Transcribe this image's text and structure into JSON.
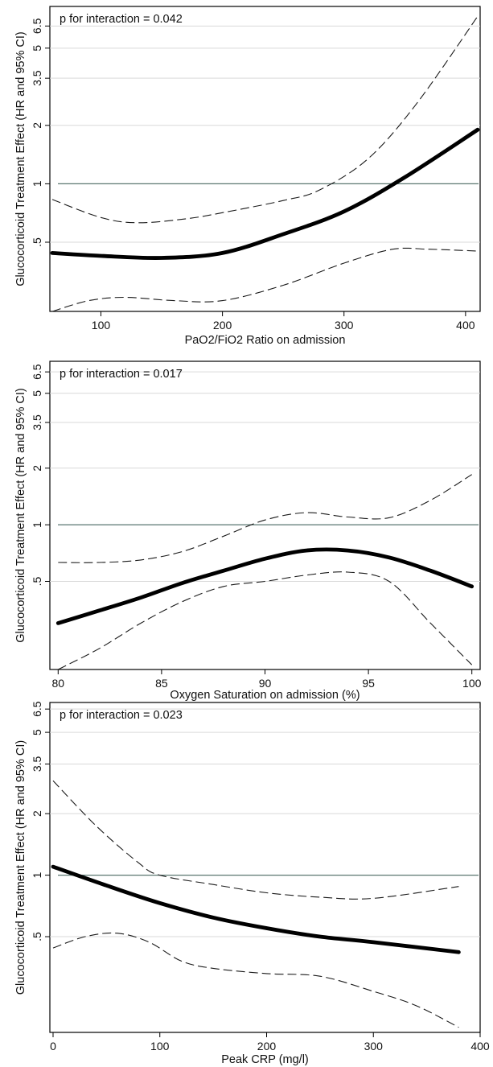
{
  "chart_data": [
    {
      "type": "line",
      "annotation": "p for interaction = 0.042",
      "xlabel": "PaO2/FiO2 Ratio on admission",
      "ylabel": "Glucocorticoid Treatment Effect (HR and 95% CI)",
      "x_ticks": [
        100,
        200,
        300,
        400
      ],
      "y_ticks": [
        0.5,
        1,
        2,
        3.5,
        5,
        6.5
      ],
      "y_tick_labels": [
        ".5",
        "1",
        "2",
        "3.5",
        "5",
        "6.5"
      ],
      "y_scale": "log",
      "xlim": [
        58,
        412
      ],
      "ylim": [
        0.22,
        8.2
      ],
      "reference_line": 1,
      "grid": true,
      "series": [
        {
          "role": "estimate",
          "x": [
            60,
            100,
            150,
            200,
            250,
            300,
            350,
            410
          ],
          "values": [
            0.44,
            0.425,
            0.415,
            0.44,
            0.55,
            0.72,
            1.08,
            1.9
          ]
        },
        {
          "role": "upper",
          "x": [
            60,
            100,
            130,
            170,
            200,
            250,
            280,
            320,
            360,
            410
          ],
          "values": [
            0.83,
            0.67,
            0.63,
            0.66,
            0.71,
            0.82,
            0.93,
            1.35,
            2.6,
            7.3
          ]
        },
        {
          "role": "lower",
          "x": [
            60,
            90,
            120,
            160,
            200,
            250,
            300,
            340,
            370,
            410
          ],
          "values": [
            0.22,
            0.25,
            0.26,
            0.25,
            0.25,
            0.3,
            0.39,
            0.46,
            0.46,
            0.45
          ]
        }
      ]
    },
    {
      "type": "line",
      "annotation": "p for interaction = 0.017",
      "xlabel": "Oxygen Saturation on admission (%)",
      "ylabel": "Glucocorticoid Treatment Effect (HR and 95% CI)",
      "x_ticks": [
        80,
        85,
        90,
        95,
        100
      ],
      "y_ticks": [
        0.5,
        1,
        2,
        3.5,
        5,
        6.5
      ],
      "y_tick_labels": [
        ".5",
        "1",
        "2",
        "3.5",
        "5",
        "6.5"
      ],
      "y_scale": "log",
      "xlim": [
        79.6,
        100.4
      ],
      "ylim": [
        0.17,
        7.4
      ],
      "reference_line": 1,
      "grid": true,
      "series": [
        {
          "role": "estimate",
          "x": [
            80,
            82,
            84,
            86,
            88,
            90,
            92,
            94,
            96,
            98,
            100
          ],
          "values": [
            0.3,
            0.35,
            0.41,
            0.49,
            0.57,
            0.66,
            0.73,
            0.73,
            0.67,
            0.57,
            0.47
          ]
        },
        {
          "role": "upper",
          "x": [
            80,
            82,
            84,
            86,
            88,
            90,
            92,
            94,
            96,
            98,
            100
          ],
          "values": [
            0.63,
            0.63,
            0.65,
            0.72,
            0.87,
            1.06,
            1.16,
            1.1,
            1.09,
            1.35,
            1.85
          ]
        },
        {
          "role": "lower",
          "x": [
            80,
            82,
            84,
            86,
            88,
            90,
            92,
            94,
            96,
            98,
            100
          ],
          "values": [
            0.17,
            0.22,
            0.3,
            0.39,
            0.47,
            0.5,
            0.54,
            0.56,
            0.5,
            0.3,
            0.18
          ]
        }
      ]
    },
    {
      "type": "line",
      "annotation": "p for interaction = 0.023",
      "xlabel": "Peak CRP (mg/l)",
      "ylabel": "Glucocorticoid Treatment Effect (HR and 95% CI)",
      "x_ticks": [
        0,
        100,
        200,
        300,
        400
      ],
      "y_ticks": [
        0.5,
        1,
        2,
        3.5,
        5,
        6.5
      ],
      "y_tick_labels": [
        ".5",
        "1",
        "2",
        "3.5",
        "5",
        "6.5"
      ],
      "y_scale": "log",
      "xlim": [
        -3,
        400
      ],
      "ylim": [
        0.17,
        7.0
      ],
      "reference_line": 1,
      "grid": true,
      "series": [
        {
          "role": "estimate",
          "x": [
            0,
            50,
            100,
            150,
            200,
            250,
            300,
            380
          ],
          "values": [
            1.1,
            0.89,
            0.73,
            0.62,
            0.55,
            0.5,
            0.47,
            0.42
          ]
        },
        {
          "role": "upper",
          "x": [
            0,
            40,
            80,
            100,
            150,
            200,
            250,
            300,
            380
          ],
          "values": [
            2.9,
            1.75,
            1.15,
            1.0,
            0.9,
            0.82,
            0.78,
            0.77,
            0.88
          ]
        },
        {
          "role": "lower",
          "x": [
            0,
            30,
            60,
            90,
            120,
            150,
            200,
            250,
            300,
            340,
            380
          ],
          "values": [
            0.44,
            0.5,
            0.52,
            0.47,
            0.38,
            0.35,
            0.33,
            0.32,
            0.27,
            0.23,
            0.18
          ]
        }
      ]
    }
  ]
}
